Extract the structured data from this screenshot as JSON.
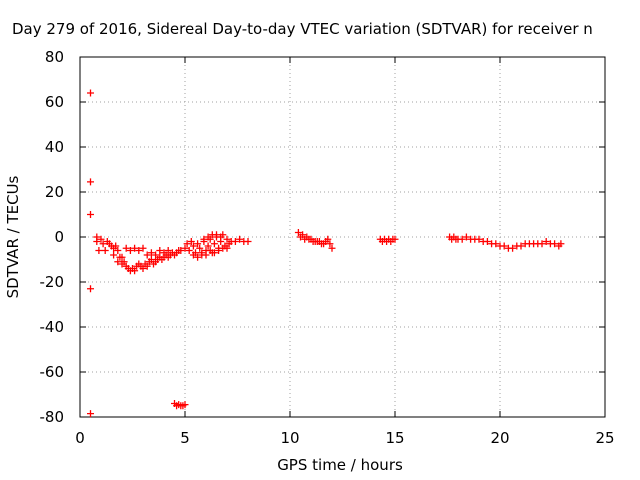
{
  "chart_data": {
    "type": "scatter",
    "title": "Day 279 of 2016, Sidereal Day-to-day VTEC variation (SDTVAR) for receiver n",
    "xlabel": "GPS time / hours",
    "ylabel": "SDTVAR / TECUs",
    "xlim": [
      0,
      25
    ],
    "ylim": [
      -80,
      80
    ],
    "xticks": [
      0,
      5,
      10,
      15,
      20,
      25
    ],
    "yticks": [
      -80,
      -60,
      -40,
      -20,
      0,
      20,
      40,
      60,
      80
    ],
    "grid": true,
    "marker": "plus",
    "color": "#ff0000",
    "points": [
      [
        0.5,
        64
      ],
      [
        0.5,
        24.5
      ],
      [
        0.5,
        10
      ],
      [
        0.5,
        -23
      ],
      [
        0.5,
        -78.5
      ],
      [
        0.8,
        0
      ],
      [
        0.8,
        -2
      ],
      [
        0.9,
        -6
      ],
      [
        1.0,
        -1
      ],
      [
        1.1,
        -3
      ],
      [
        1.2,
        -6
      ],
      [
        1.3,
        -2
      ],
      [
        1.4,
        -3
      ],
      [
        1.5,
        -4
      ],
      [
        1.6,
        -5
      ],
      [
        1.7,
        -4
      ],
      [
        1.8,
        -6
      ],
      [
        1.9,
        -9
      ],
      [
        2.0,
        -12
      ],
      [
        2.1,
        -11
      ],
      [
        2.2,
        -13
      ],
      [
        2.3,
        -14
      ],
      [
        2.4,
        -15
      ],
      [
        2.5,
        -14
      ],
      [
        2.6,
        -15
      ],
      [
        2.7,
        -13
      ],
      [
        2.8,
        -12
      ],
      [
        2.9,
        -13
      ],
      [
        3.0,
        -14
      ],
      [
        3.1,
        -12
      ],
      [
        3.2,
        -13
      ],
      [
        3.3,
        -11
      ],
      [
        3.4,
        -10
      ],
      [
        3.5,
        -12
      ],
      [
        3.6,
        -11
      ],
      [
        3.7,
        -10
      ],
      [
        3.8,
        -9
      ],
      [
        3.9,
        -10
      ],
      [
        4.0,
        -9
      ],
      [
        4.1,
        -8
      ],
      [
        4.2,
        -9
      ],
      [
        4.3,
        -8
      ],
      [
        4.4,
        -7
      ],
      [
        4.5,
        -8
      ],
      [
        4.6,
        -7
      ],
      [
        4.7,
        -6
      ],
      [
        4.8,
        -6
      ],
      [
        2.2,
        -5
      ],
      [
        2.4,
        -6
      ],
      [
        2.6,
        -5
      ],
      [
        2.8,
        -6
      ],
      [
        3.0,
        -5
      ],
      [
        3.2,
        -8
      ],
      [
        3.4,
        -7
      ],
      [
        3.6,
        -8
      ],
      [
        3.8,
        -6
      ],
      [
        4.0,
        -7
      ],
      [
        4.2,
        -6
      ],
      [
        1.6,
        -8
      ],
      [
        1.8,
        -11
      ],
      [
        2.0,
        -9
      ],
      [
        4.5,
        -74
      ],
      [
        4.6,
        -75
      ],
      [
        4.7,
        -74.5
      ],
      [
        4.8,
        -75
      ],
      [
        4.9,
        -75
      ],
      [
        5.0,
        -74.5
      ],
      [
        5.0,
        -5
      ],
      [
        5.1,
        -3
      ],
      [
        5.2,
        -6
      ],
      [
        5.3,
        -2
      ],
      [
        5.4,
        -4
      ],
      [
        5.5,
        -7
      ],
      [
        5.6,
        -3
      ],
      [
        5.7,
        -5
      ],
      [
        5.8,
        -8
      ],
      [
        5.9,
        -2
      ],
      [
        6.0,
        -6
      ],
      [
        6.1,
        -4
      ],
      [
        6.2,
        -1
      ],
      [
        6.3,
        -7
      ],
      [
        6.4,
        -3
      ],
      [
        6.5,
        0
      ],
      [
        6.6,
        -5
      ],
      [
        6.7,
        -2
      ],
      [
        6.8,
        1
      ],
      [
        6.9,
        -4
      ],
      [
        7.0,
        -1
      ],
      [
        7.1,
        -3
      ],
      [
        7.2,
        -2
      ],
      [
        7.4,
        -2
      ],
      [
        7.6,
        -1
      ],
      [
        7.8,
        -2
      ],
      [
        8.0,
        -2
      ],
      [
        5.4,
        -8
      ],
      [
        5.6,
        -9
      ],
      [
        5.8,
        -7
      ],
      [
        6.0,
        -8
      ],
      [
        6.2,
        -6
      ],
      [
        6.4,
        -7
      ],
      [
        6.6,
        -6
      ],
      [
        6.8,
        -5
      ],
      [
        7.0,
        -5
      ],
      [
        5.9,
        -1
      ],
      [
        6.1,
        0
      ],
      [
        6.3,
        1
      ],
      [
        6.5,
        1
      ],
      [
        6.7,
        0
      ],
      [
        10.4,
        2
      ],
      [
        10.5,
        0
      ],
      [
        10.6,
        1
      ],
      [
        10.7,
        -1
      ],
      [
        10.8,
        0
      ],
      [
        10.9,
        -1
      ],
      [
        11.0,
        -1
      ],
      [
        11.1,
        -2
      ],
      [
        11.2,
        -2
      ],
      [
        11.3,
        -2
      ],
      [
        11.4,
        -2
      ],
      [
        11.5,
        -3
      ],
      [
        11.6,
        -3
      ],
      [
        11.7,
        -2
      ],
      [
        11.8,
        -1
      ],
      [
        11.9,
        -3
      ],
      [
        12.0,
        -5
      ],
      [
        14.3,
        -1
      ],
      [
        14.4,
        -2
      ],
      [
        14.5,
        -1
      ],
      [
        14.6,
        -2
      ],
      [
        14.7,
        -1
      ],
      [
        14.8,
        -2
      ],
      [
        14.9,
        -1
      ],
      [
        15.0,
        -1
      ],
      [
        17.6,
        0
      ],
      [
        17.7,
        -1
      ],
      [
        17.8,
        0
      ],
      [
        17.9,
        -1
      ],
      [
        18.0,
        -1
      ],
      [
        18.2,
        -1
      ],
      [
        18.4,
        0
      ],
      [
        18.6,
        -1
      ],
      [
        18.8,
        -1
      ],
      [
        19.0,
        -1
      ],
      [
        19.2,
        -2
      ],
      [
        19.4,
        -2
      ],
      [
        19.6,
        -3
      ],
      [
        19.8,
        -3
      ],
      [
        20.0,
        -4
      ],
      [
        20.2,
        -4
      ],
      [
        20.4,
        -5
      ],
      [
        20.6,
        -5
      ],
      [
        20.8,
        -4
      ],
      [
        21.0,
        -4
      ],
      [
        21.2,
        -3
      ],
      [
        21.4,
        -3
      ],
      [
        21.6,
        -3
      ],
      [
        21.8,
        -3
      ],
      [
        22.0,
        -3
      ],
      [
        22.2,
        -2
      ],
      [
        22.4,
        -3
      ],
      [
        22.6,
        -3
      ],
      [
        22.8,
        -4
      ],
      [
        22.9,
        -3
      ]
    ]
  }
}
